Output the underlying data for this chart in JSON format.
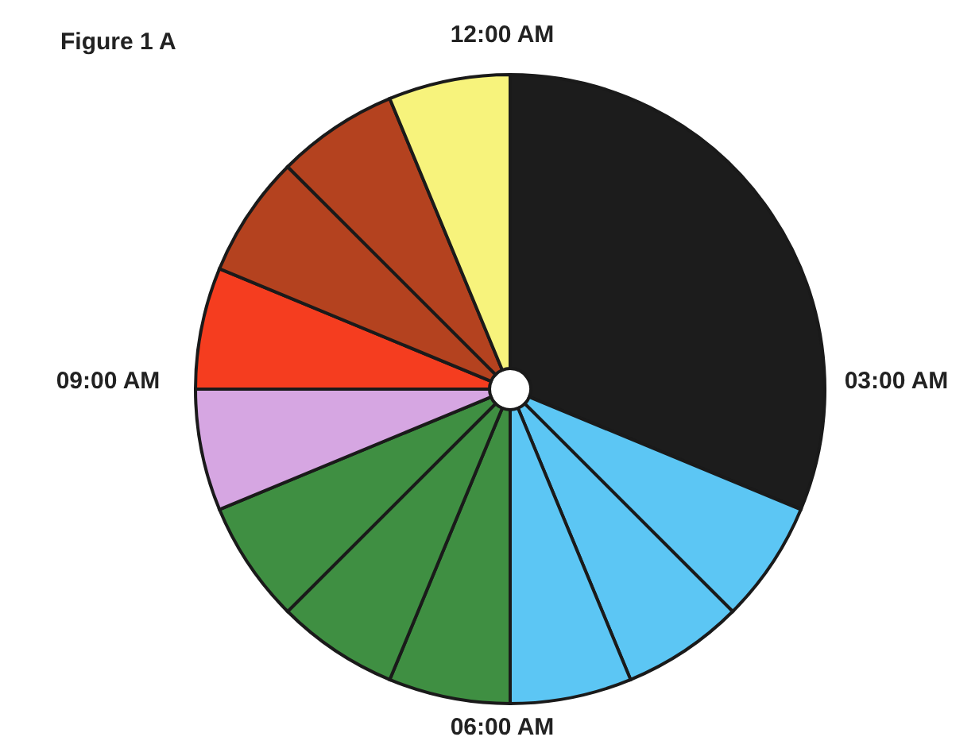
{
  "chart_data": {
    "type": "pie",
    "title": "Figure 1 A",
    "categories": [
      null,
      null,
      null,
      null,
      null,
      null,
      null,
      null,
      null,
      null,
      null,
      null
    ],
    "values": [
      31.25,
      6.25,
      6.25,
      6.25,
      6.25,
      6.25,
      6.25,
      6.25,
      6.25,
      6.25,
      6.25,
      6.25
    ],
    "colors": [
      "#1c1c1c",
      "#5cc6f4",
      "#5cc6f4",
      "#5cc6f4",
      "#3f8f42",
      "#3f8f42",
      "#3f8f42",
      "#d6a6e2",
      "#f53d1f",
      "#b4421f",
      "#b4421f",
      "#f7f37c"
    ],
    "annotations": [
      "12:00 AM",
      "03:00 AM",
      "06:00 AM",
      "09:00 AM"
    ],
    "legend": false
  }
}
